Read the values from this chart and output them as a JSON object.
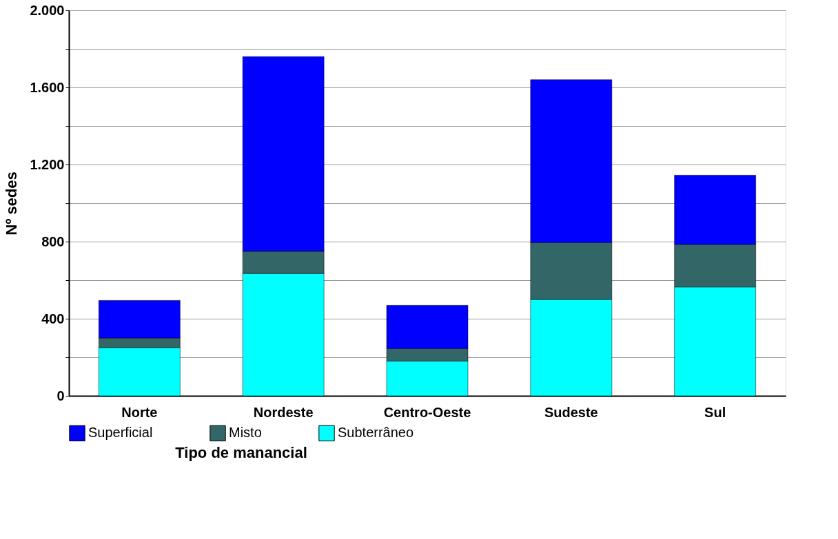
{
  "chart_data": {
    "type": "bar",
    "stacked": true,
    "ylabel": "Nº sedes",
    "legend_title": "Tipo de manancial",
    "legend": "bottom",
    "grid": "y",
    "categories": [
      "Norte",
      "Nordeste",
      "Centro-Oeste",
      "Sudeste",
      "Sul"
    ],
    "series": [
      {
        "name": "Subterrâneo",
        "color": "#00ffff",
        "values": [
          250,
          635,
          180,
          500,
          565
        ]
      },
      {
        "name": "Misto",
        "color": "#336666",
        "values": [
          50,
          115,
          65,
          295,
          220
        ]
      },
      {
        "name": "Superficial",
        "color": "#0000ff",
        "values": [
          195,
          1010,
          225,
          845,
          360
        ]
      }
    ],
    "ylim": [
      0,
      2000
    ],
    "yticks": [
      0,
      {
        "value": 200,
        "label": null
      },
      400,
      {
        "value": 600,
        "label": null
      },
      800,
      {
        "value": 1000,
        "label": null
      },
      {
        "value": 1200,
        "label": "1.200"
      },
      {
        "value": 1400,
        "label": null
      },
      {
        "value": 1600,
        "label": "1.600"
      },
      {
        "value": 1800,
        "label": null
      },
      {
        "value": 2000,
        "label": "2.000"
      }
    ]
  }
}
